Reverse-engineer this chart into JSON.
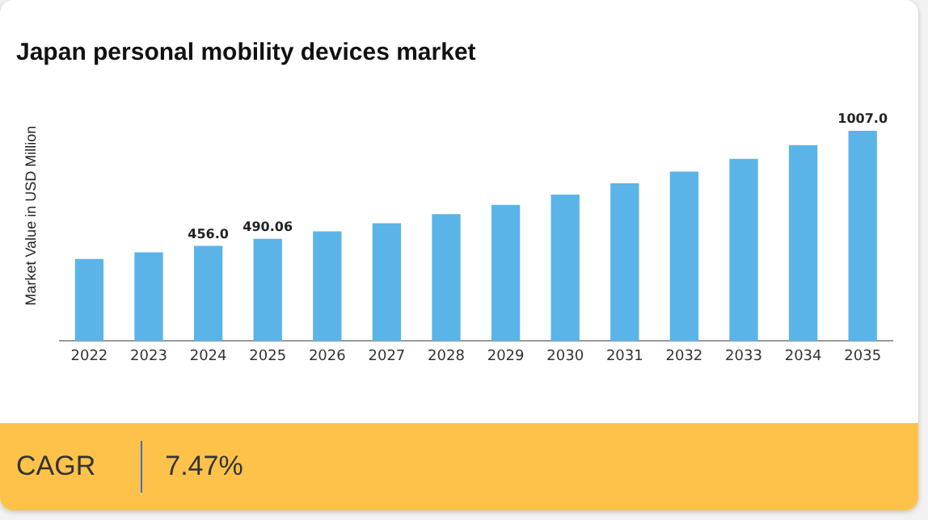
{
  "chart_data": [
    {
      "type": "bar",
      "title": "Japan personal mobility devices market",
      "ylabel": "Market Value in USD Million",
      "categories": [
        "2022",
        "2023",
        "2024",
        "2025",
        "2026",
        "2027",
        "2028",
        "2029",
        "2030",
        "2031",
        "2032",
        "2033",
        "2034",
        "2035"
      ],
      "values": [
        393,
        425,
        456.0,
        490.06,
        525,
        564,
        608,
        652,
        701,
        755,
        811,
        872,
        938,
        1007.0
      ],
      "value_labels": [
        null,
        null,
        "456.0",
        "490.06",
        null,
        null,
        null,
        null,
        null,
        null,
        null,
        null,
        null,
        "1007.0"
      ],
      "color": "#5ab4e8",
      "grid": false,
      "legend": false
    },
    {
      "type": "other",
      "annotations": [
        "CAGR",
        "7.47%"
      ]
    }
  ]
}
